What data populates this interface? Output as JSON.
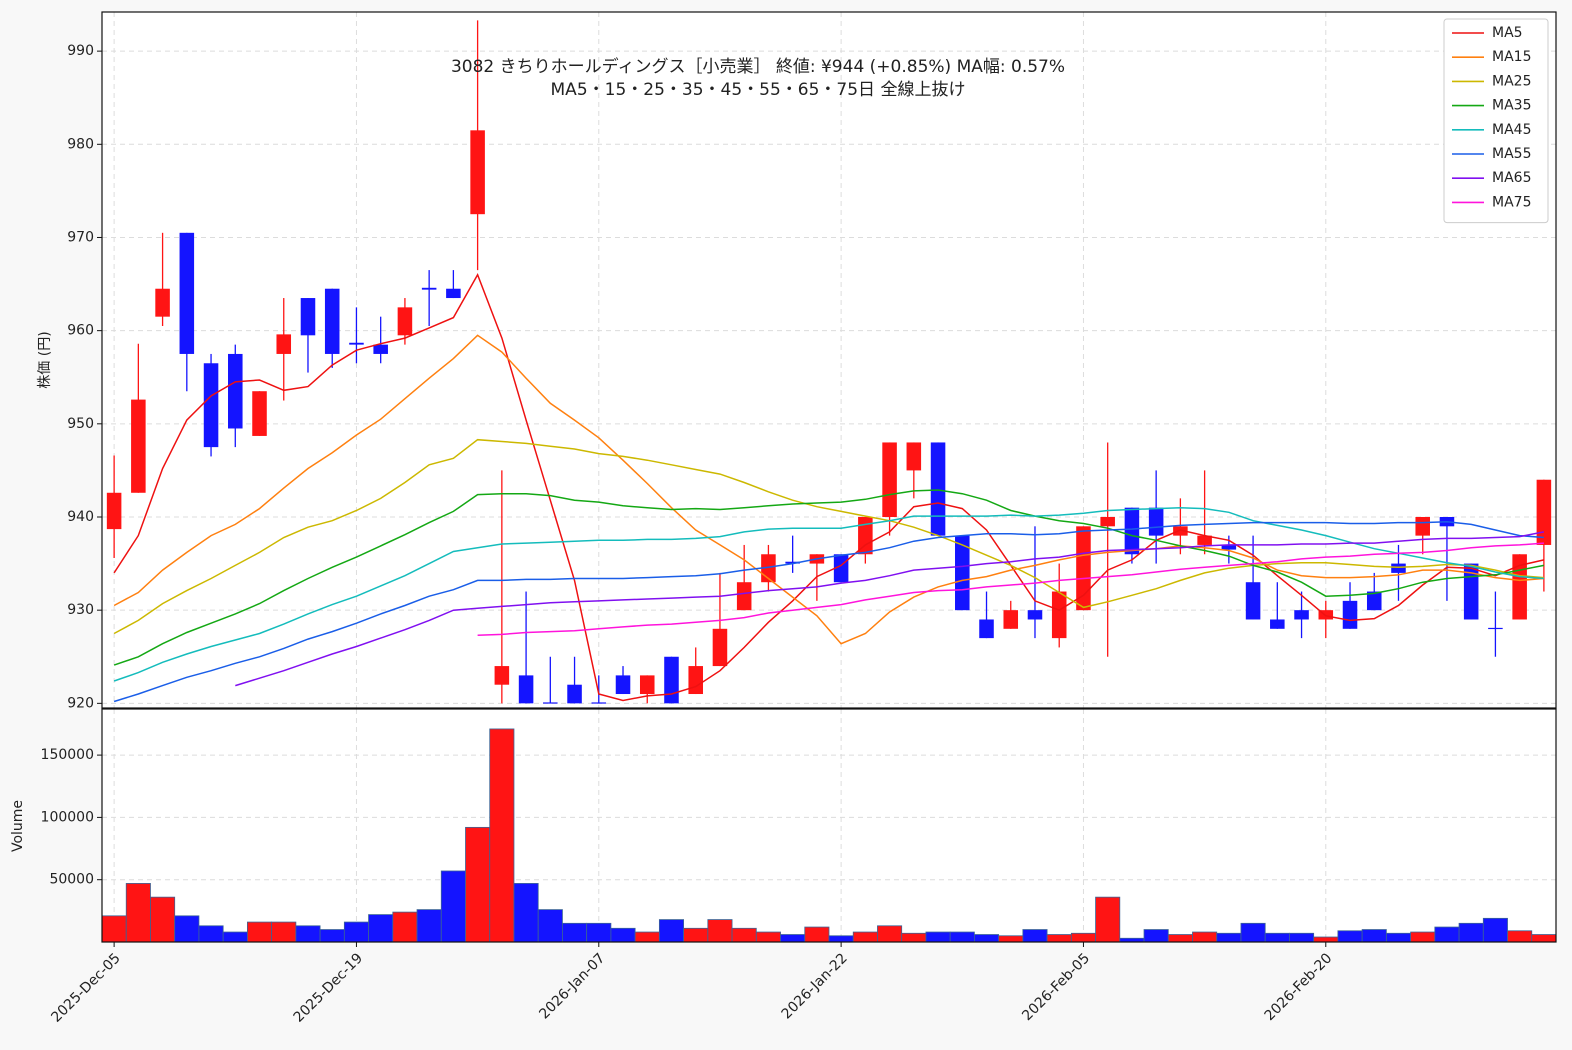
{
  "chart_data": {
    "type": "candlestick",
    "title": "3082  きちりホールディングス［小売業］ 終値: ¥944 (+0.85%)  MA幅: 0.57%",
    "subtitle": "MA5・15・25・35・45・55・65・75日 全線上抜け",
    "ylabel": "株価 (円)",
    "categories": [
      "2025-Dec-05",
      null,
      null,
      null,
      null,
      null,
      null,
      null,
      null,
      null,
      "2025-Dec-19",
      null,
      null,
      null,
      null,
      null,
      null,
      null,
      null,
      null,
      "2026-Jan-07",
      null,
      null,
      null,
      null,
      null,
      null,
      null,
      null,
      null,
      "2026-Jan-22",
      null,
      null,
      null,
      null,
      null,
      null,
      null,
      null,
      null,
      "2026-Feb-05",
      null,
      null,
      null,
      null,
      null,
      null,
      null,
      null,
      null,
      "2026-Feb-20",
      null,
      null,
      null,
      null,
      null,
      null,
      null,
      null,
      null
    ],
    "open": [
      938.7,
      942.6,
      961.5,
      970.5,
      956.5,
      957.5,
      948.7,
      957.5,
      963.5,
      964.5,
      958.7,
      958.5,
      959.5,
      964.6,
      964.5,
      972.5,
      922,
      923,
      920.1,
      922,
      920.1,
      923,
      921,
      925,
      921,
      924,
      930,
      933,
      935.2,
      935,
      936,
      936,
      940,
      945,
      948,
      938,
      929,
      928,
      930,
      927,
      930,
      939,
      941,
      941,
      938,
      937,
      937,
      933,
      929,
      930,
      929,
      931,
      932,
      935,
      938,
      940,
      935,
      928.1,
      929,
      937
    ],
    "high": [
      946.6,
      958.6,
      970.5,
      970.5,
      957.5,
      958.5,
      953.5,
      963.5,
      963.5,
      964.5,
      962.5,
      961.5,
      963.5,
      966.5,
      966.5,
      993.3,
      945,
      932,
      925,
      925,
      923,
      924,
      923,
      925,
      926,
      934,
      937,
      937,
      938,
      936,
      936,
      940,
      948,
      948,
      948,
      938,
      932,
      931,
      939,
      935,
      939,
      948,
      941,
      945,
      942,
      945,
      938,
      938,
      933,
      932,
      931,
      933,
      934,
      937,
      940,
      940,
      935,
      932,
      936,
      944
    ],
    "low": [
      935.6,
      942.6,
      960.5,
      953.5,
      946.5,
      947.5,
      948.7,
      952.5,
      955.5,
      956,
      956.5,
      956.5,
      958.5,
      960.5,
      963.5,
      966.5,
      920,
      920,
      920,
      920,
      920,
      921,
      920,
      920,
      921,
      924,
      930,
      932,
      934,
      931,
      933,
      935,
      938,
      942,
      938,
      930,
      927,
      928,
      927,
      926,
      930,
      925,
      935,
      935,
      936,
      936,
      935,
      929,
      928,
      927,
      927,
      928,
      930,
      931,
      936,
      931,
      929,
      925,
      929,
      932
    ],
    "close": [
      942.6,
      952.6,
      964.5,
      957.5,
      947.5,
      949.5,
      953.5,
      959.6,
      959.5,
      957.5,
      958.5,
      957.5,
      962.5,
      964.4,
      963.5,
      981.5,
      924,
      920,
      920,
      920,
      920,
      921,
      923,
      920,
      924,
      928,
      933,
      936,
      935,
      936,
      933,
      940,
      948,
      948,
      938,
      930,
      927,
      930,
      929,
      932,
      939,
      940,
      936,
      938,
      939,
      938,
      936.5,
      929,
      928,
      929,
      930,
      928,
      930,
      934,
      940,
      939,
      929,
      928,
      936,
      944
    ],
    "volume": [
      21000,
      47000,
      36000,
      21000,
      13000,
      8000,
      16000,
      16000,
      13000,
      10000,
      16000,
      22000,
      24000,
      26000,
      57000,
      92000,
      171000,
      47000,
      26000,
      15000,
      15000,
      11000,
      8000,
      18000,
      11000,
      18000,
      11000,
      8000,
      6000,
      12000,
      5000,
      8000,
      13000,
      7000,
      8000,
      8000,
      6000,
      5000,
      10000,
      6000,
      7000,
      36000,
      3000,
      10000,
      6000,
      8000,
      7000,
      15000,
      7000,
      7000,
      4000,
      9000,
      10000,
      7000,
      8000,
      12000,
      15000,
      19000,
      9000,
      6000
    ],
    "up_color": "#ff1414",
    "down_color": "#1414ff",
    "ylim": [
      919.5,
      994.2
    ],
    "yticks": [
      920,
      930,
      940,
      950,
      960,
      970,
      980,
      990
    ],
    "volume_axis": {
      "ylabel": "Volume",
      "ylim": [
        0,
        187000
      ],
      "yticks": [
        50000,
        100000,
        150000
      ]
    },
    "grid": true,
    "legend": "upper right",
    "series": [
      {
        "name": "MA5",
        "color": "#ee1111",
        "values": [
          934,
          938,
          945.2,
          950.4,
          953,
          954.5,
          954.7,
          953.6,
          954,
          956.3,
          957.9,
          958.6,
          959.2,
          960.3,
          961.4,
          966,
          959.2,
          950.4,
          941.8,
          933.2,
          921,
          920.3,
          920.8,
          921,
          921.8,
          923.5,
          926,
          928.7,
          931,
          933.6,
          934.8,
          937,
          938.4,
          941.1,
          941.5,
          940.9,
          938.6,
          934.8,
          931,
          930,
          931.6,
          934.3,
          935.4,
          937.5,
          938.6,
          938,
          937.5,
          935.9,
          933.7,
          931.6,
          929.4,
          928.9,
          929.1,
          930.5,
          932.7,
          934.6,
          934.5,
          933.7,
          934.8,
          935.4
        ]
      },
      {
        "name": "MA15",
        "color": "#ff8010",
        "values": [
          930.5,
          931.9,
          934.3,
          936.2,
          938,
          939.2,
          940.9,
          943.1,
          945.2,
          946.9,
          948.8,
          950.5,
          952.7,
          954.9,
          957,
          959.5,
          957.7,
          954.9,
          952.2,
          950.4,
          948.5,
          946.1,
          943.6,
          941,
          938.6,
          937,
          935.4,
          933.4,
          931.4,
          929.4,
          926.4,
          927.5,
          929.8,
          931.4,
          932.5,
          933.2,
          933.6,
          934.3,
          934.8,
          935.4,
          935.9,
          936.2,
          936.4,
          936.6,
          936.9,
          936.7,
          936.4,
          935.6,
          934.3,
          933.7,
          933.5,
          933.5,
          933.6,
          933.8,
          934.3,
          934.3,
          934,
          933.5,
          933.2,
          933.4
        ]
      },
      {
        "name": "MA25",
        "color": "#ccb800",
        "values": [
          927.5,
          928.9,
          930.7,
          932.1,
          933.4,
          934.8,
          936.2,
          937.8,
          938.9,
          939.6,
          940.7,
          942,
          943.7,
          945.6,
          946.3,
          948.3,
          948.1,
          947.9,
          947.6,
          947.3,
          946.8,
          946.5,
          946.1,
          945.6,
          945.1,
          944.6,
          943.7,
          942.7,
          941.8,
          941.1,
          940.6,
          940.1,
          939.6,
          938.9,
          938,
          937,
          935.9,
          934.8,
          933.5,
          931.9,
          930.3,
          930.9,
          931.6,
          932.3,
          933.2,
          934,
          934.5,
          934.8,
          935,
          935.1,
          935.1,
          934.9,
          934.7,
          934.6,
          934.7,
          934.9,
          934.8,
          934.3,
          933.7,
          933.5
        ]
      },
      {
        "name": "MA35",
        "color": "#14a814",
        "values": [
          924.1,
          925,
          926.4,
          927.6,
          928.6,
          929.6,
          930.7,
          932.1,
          933.4,
          934.6,
          935.7,
          936.9,
          938.1,
          939.4,
          940.6,
          942.4,
          942.5,
          942.5,
          942.3,
          941.8,
          941.6,
          941.2,
          941,
          940.8,
          940.9,
          940.8,
          941,
          941.2,
          941.4,
          941.5,
          941.6,
          941.9,
          942.4,
          942.8,
          942.9,
          942.5,
          941.8,
          940.7,
          940.1,
          939.6,
          939.3,
          938.8,
          938,
          937.5,
          936.9,
          936.4,
          935.8,
          934.8,
          934.1,
          933,
          931.5,
          931.6,
          931.8,
          932.3,
          933,
          933.4,
          933.6,
          933.8,
          934.3,
          934.8
        ]
      },
      {
        "name": "MA45",
        "color": "#14bcbc",
        "values": [
          922.4,
          923.3,
          924.4,
          925.3,
          926.1,
          926.8,
          927.5,
          928.5,
          929.6,
          930.6,
          931.5,
          932.6,
          933.7,
          935,
          936.3,
          936.7,
          937.1,
          937.2,
          937.3,
          937.4,
          937.5,
          937.5,
          937.6,
          937.6,
          937.7,
          937.9,
          938.4,
          938.7,
          938.8,
          938.8,
          938.8,
          939.2,
          939.6,
          940.1,
          940.1,
          940.1,
          940.1,
          940.2,
          940.1,
          940.2,
          940.4,
          940.7,
          940.8,
          940.9,
          941,
          940.9,
          940.5,
          939.6,
          939.1,
          938.6,
          938,
          937.3,
          936.6,
          936.1,
          935.6,
          935.1,
          934.7,
          934.1,
          933.6,
          933.4
        ]
      },
      {
        "name": "MA55",
        "color": "#1a5ee8",
        "values": [
          920.2,
          921,
          921.9,
          922.8,
          923.5,
          924.3,
          925,
          925.9,
          926.9,
          927.7,
          928.6,
          929.6,
          930.5,
          931.5,
          932.2,
          933.2,
          933.2,
          933.3,
          933.3,
          933.4,
          933.4,
          933.4,
          933.5,
          933.6,
          933.7,
          933.9,
          934.3,
          934.6,
          935,
          935.5,
          935.9,
          936.2,
          936.7,
          937.4,
          937.8,
          938,
          938.2,
          938.2,
          938.1,
          938.2,
          938.5,
          938.6,
          938.7,
          938.9,
          939.1,
          939.2,
          939.3,
          939.4,
          939.4,
          939.4,
          939.4,
          939.3,
          939.3,
          939.4,
          939.4,
          939.5,
          939.2,
          938.6,
          938,
          937.8
        ]
      },
      {
        "name": "MA65",
        "color": "#8010f0",
        "values": [
          null,
          null,
          null,
          null,
          null,
          921.9,
          922.7,
          923.5,
          924.4,
          925.3,
          926.1,
          927,
          927.9,
          928.9,
          930,
          930.2,
          930.4,
          930.6,
          930.8,
          930.9,
          931,
          931.1,
          931.2,
          931.3,
          931.4,
          931.5,
          931.8,
          932.1,
          932.3,
          932.5,
          932.9,
          933.2,
          933.7,
          934.3,
          934.5,
          934.7,
          935,
          935.2,
          935.5,
          935.7,
          936.1,
          936.4,
          936.5,
          936.6,
          936.7,
          936.9,
          937,
          937,
          937,
          937.1,
          937.1,
          937.2,
          937.2,
          937.4,
          937.6,
          937.7,
          937.7,
          937.8,
          937.9,
          938.4
        ]
      },
      {
        "name": "MA75",
        "color": "#ff14dc",
        "values": [
          null,
          null,
          null,
          null,
          null,
          null,
          null,
          null,
          null,
          null,
          null,
          null,
          null,
          null,
          null,
          927.3,
          927.4,
          927.6,
          927.7,
          927.8,
          928,
          928.2,
          928.4,
          928.5,
          928.7,
          928.9,
          929.2,
          929.7,
          930,
          930.3,
          930.6,
          931.1,
          931.5,
          931.9,
          932.1,
          932.2,
          932.5,
          932.7,
          932.9,
          933.2,
          933.4,
          933.6,
          933.8,
          934.1,
          934.4,
          934.6,
          934.8,
          935,
          935.2,
          935.5,
          935.7,
          935.8,
          936,
          936.1,
          936.2,
          936.4,
          936.7,
          936.9,
          937,
          937.2
        ]
      }
    ]
  }
}
